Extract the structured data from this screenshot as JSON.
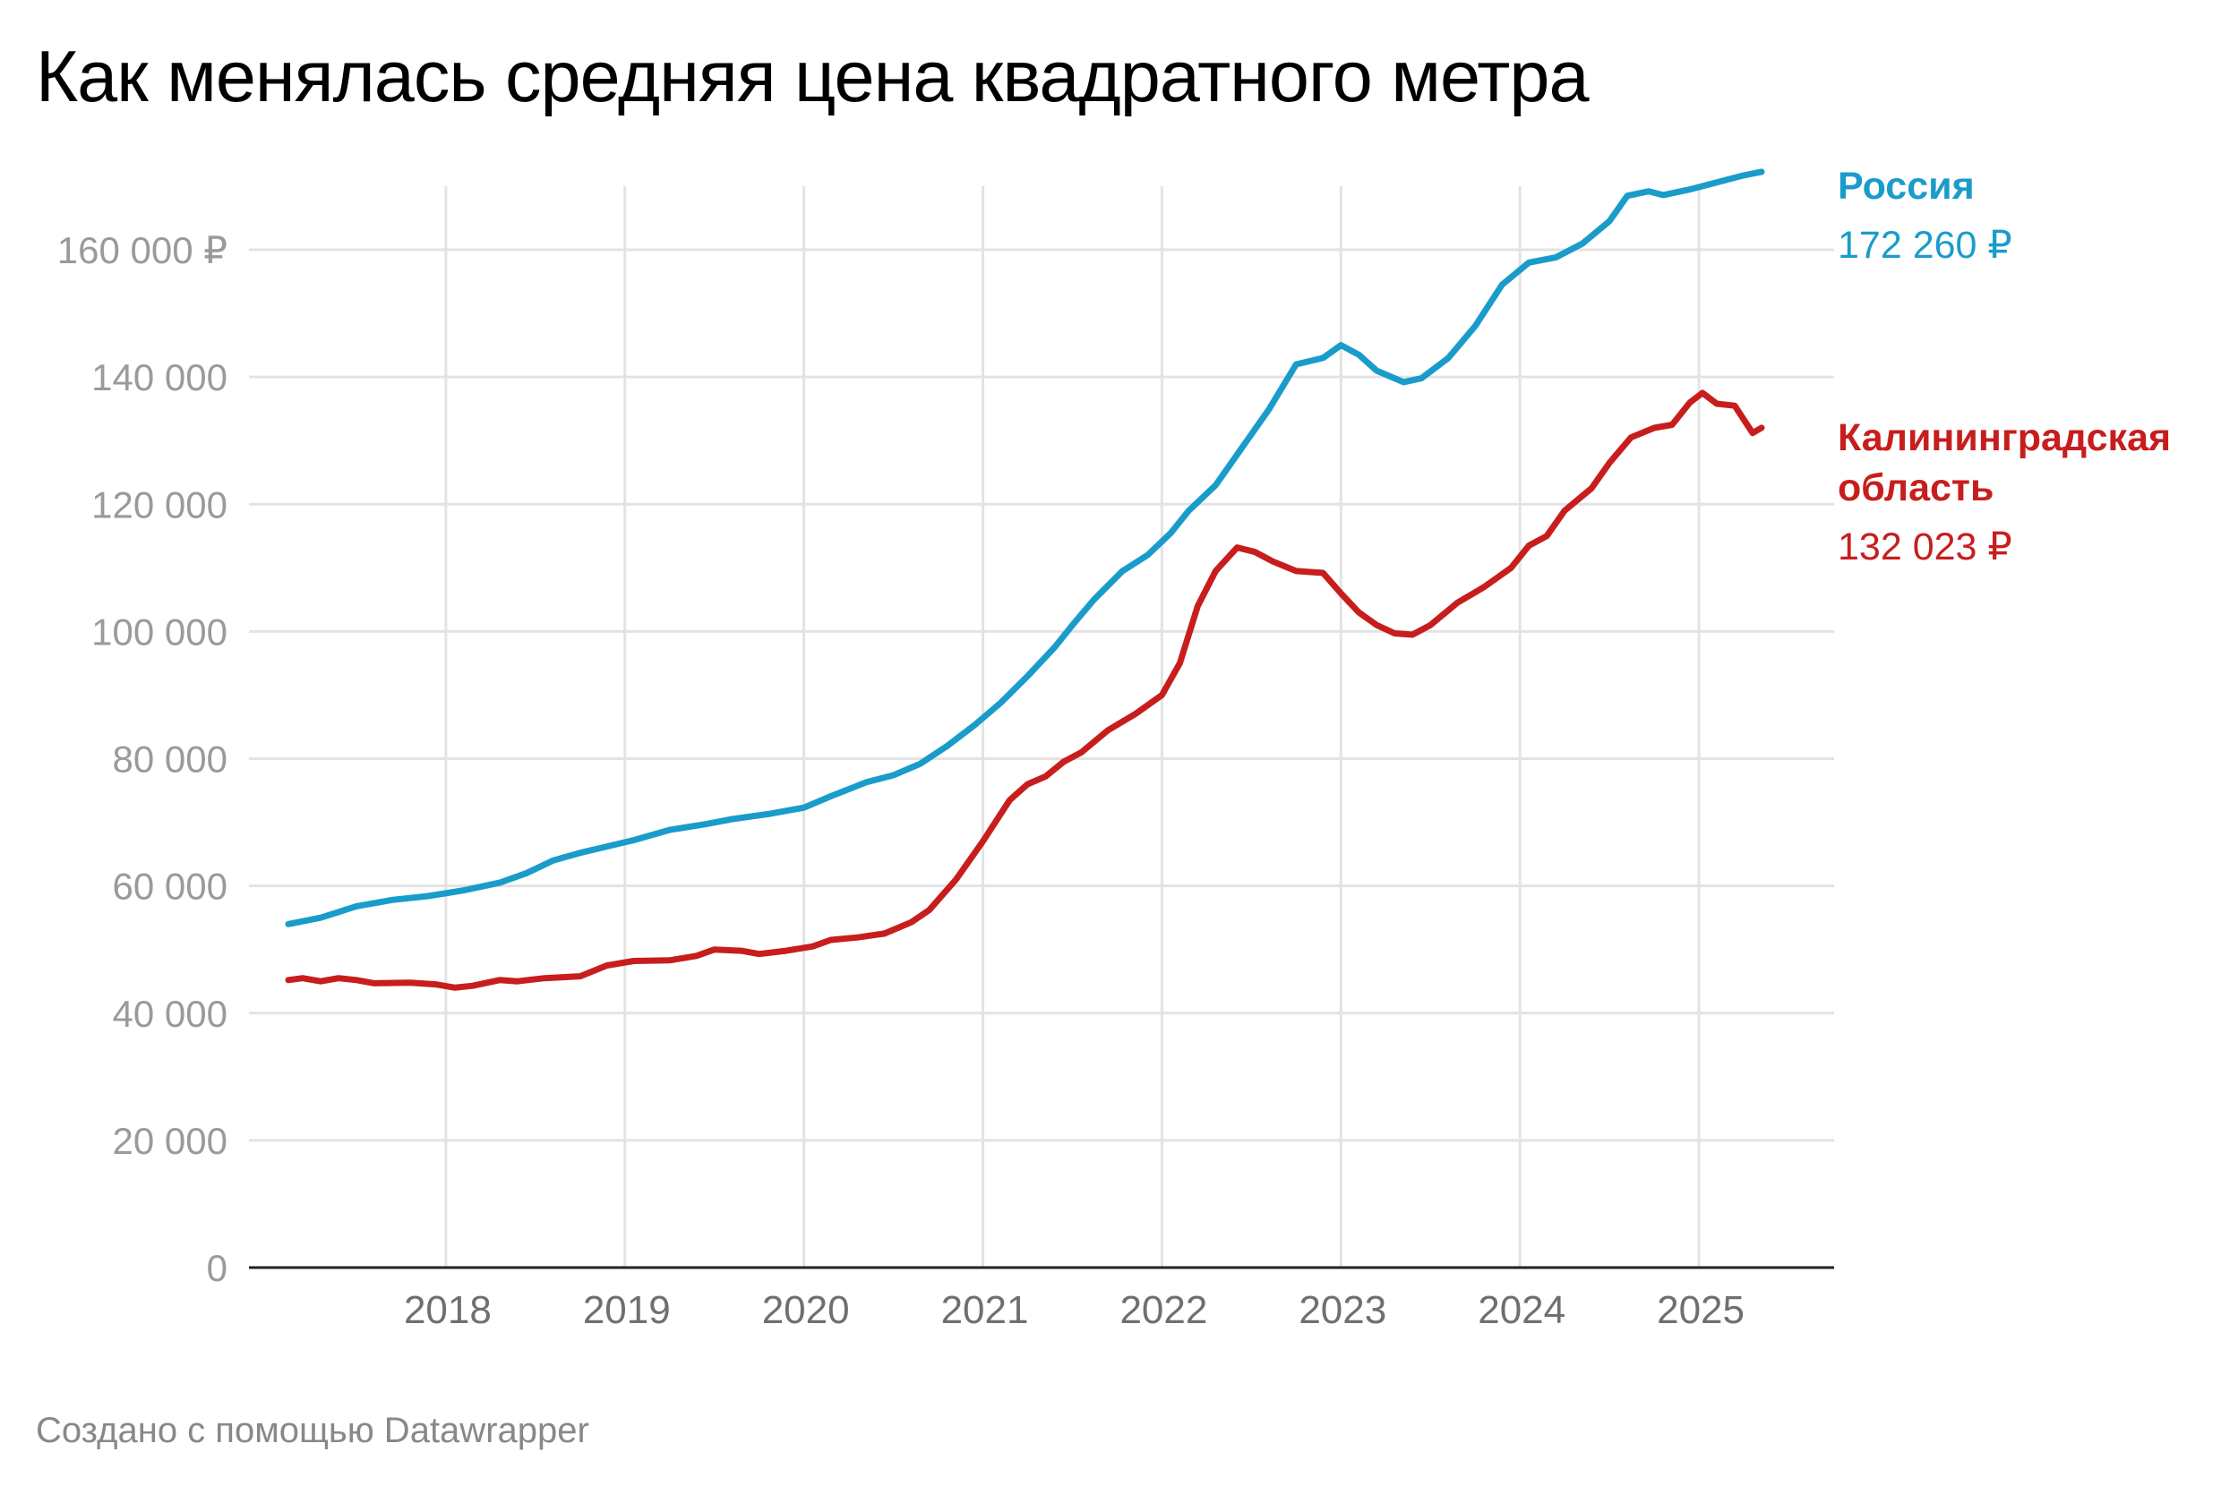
{
  "header": {
    "title": "Как менялась средняя цена квадратного метра"
  },
  "footer": {
    "credit": "Создано с помощью Datawrapper"
  },
  "chart_data": {
    "type": "line",
    "title": "Как менялась средняя цена квадратного метра",
    "xlabel": "",
    "ylabel": "",
    "xlim": [
      2017.1,
      2025.35
    ],
    "ylim": [
      0,
      170000
    ],
    "y_ticks": [
      {
        "value": 0,
        "label": "0"
      },
      {
        "value": 20000,
        "label": "20 000"
      },
      {
        "value": 40000,
        "label": "40 000"
      },
      {
        "value": 60000,
        "label": "60 000"
      },
      {
        "value": 80000,
        "label": "80 000"
      },
      {
        "value": 100000,
        "label": "100 000"
      },
      {
        "value": 120000,
        "label": "120 000"
      },
      {
        "value": 140000,
        "label": "140 000"
      },
      {
        "value": 160000,
        "label": "160 000 ₽"
      }
    ],
    "x_ticks": [
      {
        "value": 2018,
        "label": "2018"
      },
      {
        "value": 2019,
        "label": "2019"
      },
      {
        "value": 2020,
        "label": "2020"
      },
      {
        "value": 2021,
        "label": "2021"
      },
      {
        "value": 2022,
        "label": "2022"
      },
      {
        "value": 2023,
        "label": "2023"
      },
      {
        "value": 2024,
        "label": "2024"
      },
      {
        "value": 2025,
        "label": "2025"
      }
    ],
    "grid": true,
    "legend": "direct labels at right end of lines",
    "series": [
      {
        "name": "Россия",
        "end_label": "172 260 ₽",
        "color": "#1a9ccb",
        "points": [
          [
            2017.12,
            54000
          ],
          [
            2017.3,
            55000
          ],
          [
            2017.5,
            56800
          ],
          [
            2017.7,
            57800
          ],
          [
            2017.9,
            58400
          ],
          [
            2018.1,
            59300
          ],
          [
            2018.3,
            60500
          ],
          [
            2018.45,
            62000
          ],
          [
            2018.6,
            64000
          ],
          [
            2018.75,
            65200
          ],
          [
            2018.9,
            66200
          ],
          [
            2019.05,
            67200
          ],
          [
            2019.25,
            68800
          ],
          [
            2019.45,
            69700
          ],
          [
            2019.6,
            70500
          ],
          [
            2019.8,
            71300
          ],
          [
            2020.0,
            72300
          ],
          [
            2020.15,
            74100
          ],
          [
            2020.35,
            76300
          ],
          [
            2020.5,
            77400
          ],
          [
            2020.65,
            79200
          ],
          [
            2020.8,
            82000
          ],
          [
            2020.95,
            85200
          ],
          [
            2021.1,
            88800
          ],
          [
            2021.25,
            93000
          ],
          [
            2021.4,
            97500
          ],
          [
            2021.5,
            101000
          ],
          [
            2021.62,
            105000
          ],
          [
            2021.78,
            109500
          ],
          [
            2021.92,
            112000
          ],
          [
            2022.05,
            115500
          ],
          [
            2022.15,
            119000
          ],
          [
            2022.3,
            123000
          ],
          [
            2022.45,
            129000
          ],
          [
            2022.6,
            135000
          ],
          [
            2022.75,
            142000
          ],
          [
            2022.9,
            143000
          ],
          [
            2023.0,
            145000
          ],
          [
            2023.1,
            143500
          ],
          [
            2023.2,
            141000
          ],
          [
            2023.35,
            139200
          ],
          [
            2023.45,
            139800
          ],
          [
            2023.6,
            143000
          ],
          [
            2023.75,
            148000
          ],
          [
            2023.9,
            154500
          ],
          [
            2024.05,
            158000
          ],
          [
            2024.2,
            158800
          ],
          [
            2024.35,
            161000
          ],
          [
            2024.5,
            164500
          ],
          [
            2024.6,
            168500
          ],
          [
            2024.72,
            169200
          ],
          [
            2024.8,
            168600
          ],
          [
            2024.95,
            169500
          ],
          [
            2025.1,
            170600
          ],
          [
            2025.25,
            171700
          ],
          [
            2025.35,
            172260
          ]
        ]
      },
      {
        "name": "Калининградская область",
        "end_label": "132 023 ₽",
        "color": "#c71e1d",
        "points": [
          [
            2017.12,
            45200
          ],
          [
            2017.2,
            45500
          ],
          [
            2017.3,
            45000
          ],
          [
            2017.4,
            45500
          ],
          [
            2017.5,
            45200
          ],
          [
            2017.6,
            44700
          ],
          [
            2017.8,
            44800
          ],
          [
            2017.95,
            44500
          ],
          [
            2018.05,
            44000
          ],
          [
            2018.15,
            44300
          ],
          [
            2018.3,
            45200
          ],
          [
            2018.4,
            45000
          ],
          [
            2018.55,
            45500
          ],
          [
            2018.75,
            45800
          ],
          [
            2018.9,
            47500
          ],
          [
            2019.05,
            48200
          ],
          [
            2019.25,
            48300
          ],
          [
            2019.4,
            49000
          ],
          [
            2019.5,
            50000
          ],
          [
            2019.65,
            49800
          ],
          [
            2019.75,
            49300
          ],
          [
            2019.9,
            49800
          ],
          [
            2020.05,
            50500
          ],
          [
            2020.15,
            51500
          ],
          [
            2020.3,
            51900
          ],
          [
            2020.45,
            52500
          ],
          [
            2020.6,
            54300
          ],
          [
            2020.7,
            56200
          ],
          [
            2020.85,
            61000
          ],
          [
            2021.0,
            67000
          ],
          [
            2021.15,
            73500
          ],
          [
            2021.25,
            76000
          ],
          [
            2021.35,
            77200
          ],
          [
            2021.45,
            79500
          ],
          [
            2021.55,
            81000
          ],
          [
            2021.7,
            84500
          ],
          [
            2021.85,
            87000
          ],
          [
            2022.0,
            90000
          ],
          [
            2022.1,
            95000
          ],
          [
            2022.2,
            104000
          ],
          [
            2022.3,
            109500
          ],
          [
            2022.42,
            113200
          ],
          [
            2022.52,
            112500
          ],
          [
            2022.62,
            111000
          ],
          [
            2022.75,
            109500
          ],
          [
            2022.9,
            109200
          ],
          [
            2023.0,
            106000
          ],
          [
            2023.1,
            103000
          ],
          [
            2023.2,
            101000
          ],
          [
            2023.3,
            99700
          ],
          [
            2023.4,
            99500
          ],
          [
            2023.5,
            101000
          ],
          [
            2023.65,
            104500
          ],
          [
            2023.8,
            107000
          ],
          [
            2023.95,
            110000
          ],
          [
            2024.05,
            113500
          ],
          [
            2024.15,
            115000
          ],
          [
            2024.25,
            119000
          ],
          [
            2024.4,
            122500
          ],
          [
            2024.5,
            126500
          ],
          [
            2024.62,
            130500
          ],
          [
            2024.75,
            132000
          ],
          [
            2024.85,
            132500
          ],
          [
            2024.95,
            136000
          ],
          [
            2025.02,
            137500
          ],
          [
            2025.1,
            135800
          ],
          [
            2025.2,
            135500
          ],
          [
            2025.3,
            131200
          ],
          [
            2025.35,
            132023
          ]
        ]
      }
    ]
  }
}
